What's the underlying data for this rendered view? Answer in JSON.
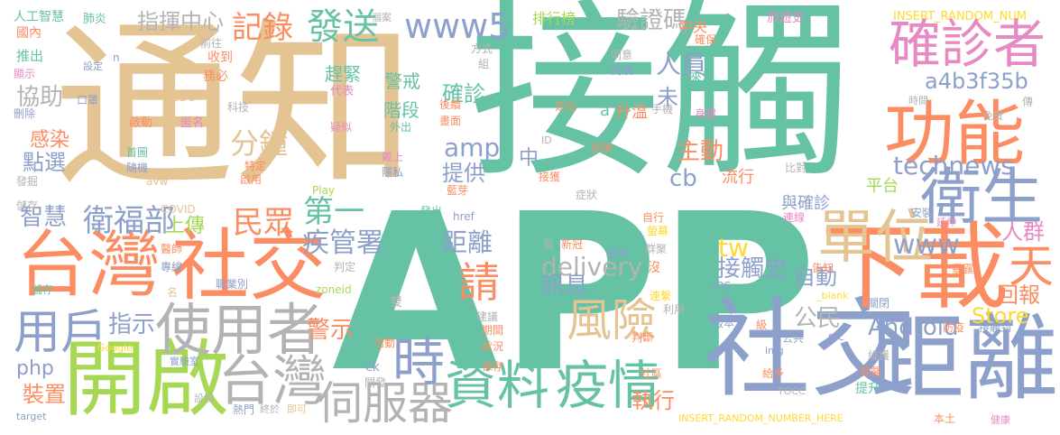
{
  "palette": {
    "green": "#66c2a5",
    "orange": "#fc8d62",
    "blue": "#8da0cb",
    "pink": "#e78ac3",
    "lime": "#a6d854",
    "yellow": "#ffd92f",
    "tan": "#e5c494",
    "gray": "#b3b3b3"
  },
  "words": [
    {
      "text": "接觸",
      "color": "#66c2a5"
    },
    {
      "text": "APP",
      "color": "#66c2a5"
    },
    {
      "text": "通知",
      "color": "#e5c494"
    },
    {
      "text": "台灣",
      "color": "#fc8d62"
    },
    {
      "text": "社交",
      "color": "#fc8d62"
    },
    {
      "text": "社交",
      "color": "#8da0cb"
    },
    {
      "text": "距離",
      "color": "#8da0cb"
    },
    {
      "text": "開啟",
      "color": "#a6d854"
    },
    {
      "text": "下載",
      "color": "#fc8d62"
    },
    {
      "text": "功能",
      "color": "#fc8d62"
    },
    {
      "text": "確診者",
      "color": "#e78ac3"
    },
    {
      "text": "衛生",
      "color": "#8da0cb"
    },
    {
      "text": "單位",
      "color": "#e5c494"
    },
    {
      "text": "使用者",
      "color": "#b3b3b3"
    },
    {
      "text": "用戶",
      "color": "#8da0cb"
    },
    {
      "text": "資料",
      "color": "#66c2a5"
    },
    {
      "text": "疫情",
      "color": "#66c2a5"
    },
    {
      "text": "台灣",
      "color": "#b3b3b3"
    },
    {
      "text": "伺服器",
      "color": "#b3b3b3"
    },
    {
      "text": "風險",
      "color": "#e5c494"
    },
    {
      "text": "時",
      "color": "#8da0cb"
    },
    {
      "text": "天",
      "color": "#fc8d62"
    },
    {
      "text": "請",
      "color": "#fc8d62"
    },
    {
      "text": "衛福部",
      "color": "#8da0cb"
    },
    {
      "text": "民眾",
      "color": "#fc8d62"
    },
    {
      "text": "分鐘",
      "color": "#e5c494"
    },
    {
      "text": "第一",
      "color": "#66c2a5"
    },
    {
      "text": "發送",
      "color": "#66c2a5"
    },
    {
      "text": "www5",
      "color": "#8da0cb"
    },
    {
      "text": "technews",
      "color": "#8da0cb"
    },
    {
      "text": "www",
      "color": "#8da0cb"
    },
    {
      "text": "delivery",
      "color": "#b3b3b3"
    },
    {
      "text": "Android",
      "color": "#8da0cb"
    },
    {
      "text": "a4b3f35b",
      "color": "#8da0cb"
    },
    {
      "text": "接觸史",
      "color": "#8da0cb"
    },
    {
      "text": "距離",
      "color": "#8da0cb"
    },
    {
      "text": "疾管署",
      "color": "#8da0cb"
    },
    {
      "text": "記錄",
      "color": "#fc8d62"
    },
    {
      "text": "指揮中心",
      "color": "#b3b3b3"
    },
    {
      "text": "驗證碼",
      "color": "#b3b3b3"
    },
    {
      "text": "協助",
      "color": "#b3b3b3"
    },
    {
      "text": "確診",
      "color": "#66c2a5"
    },
    {
      "text": "階段",
      "color": "#66c2a5"
    },
    {
      "text": "警戒",
      "color": "#66c2a5"
    },
    {
      "text": "趕緊",
      "color": "#66c2a5"
    },
    {
      "text": "人員",
      "color": "#8da0cb"
    },
    {
      "text": "主動",
      "color": "#fc8d62"
    },
    {
      "text": "提供",
      "color": "#8da0cb"
    },
    {
      "text": "amp",
      "color": "#8da0cb"
    },
    {
      "text": "cb",
      "color": "#8da0cb"
    },
    {
      "text": "tw",
      "color": "#ffd92f"
    },
    {
      "text": "訊息",
      "color": "#8da0cb"
    },
    {
      "text": "自動",
      "color": "#8da0cb"
    },
    {
      "text": "公民",
      "color": "#b3b3b3"
    },
    {
      "text": "回報",
      "color": "#fc8d62"
    },
    {
      "text": "人群",
      "color": "#e78ac3"
    },
    {
      "text": "警示",
      "color": "#fc8d62"
    },
    {
      "text": "指示",
      "color": "#8da0cb"
    },
    {
      "text": "上傳",
      "color": "#a6d854"
    },
    {
      "text": "智慧",
      "color": "#8da0cb"
    },
    {
      "text": "裝置",
      "color": "#fc8d62"
    },
    {
      "text": "php",
      "color": "#8da0cb"
    },
    {
      "text": "Store",
      "color": "#ffd92f"
    },
    {
      "text": "點選",
      "color": "#8da0cb"
    },
    {
      "text": "感染",
      "color": "#fc8d62"
    },
    {
      "text": "執行",
      "color": "#fc8d62"
    },
    {
      "text": "中",
      "color": "#8da0cb"
    },
    {
      "text": "未",
      "color": "#8da0cb"
    },
    {
      "text": "a",
      "color": "#66c2a5"
    },
    {
      "text": "升溫",
      "color": "#fc8d62"
    },
    {
      "text": "中央",
      "color": "#fc8d62"
    },
    {
      "text": "流行",
      "color": "#fc8d62"
    },
    {
      "text": "平台",
      "color": "#a6d854"
    },
    {
      "text": "與確診",
      "color": "#8da0cb"
    },
    {
      "text": "排行榜",
      "color": "#a6d854"
    },
    {
      "text": "旅遊史",
      "color": "#e78ac3"
    },
    {
      "text": "INSERT_RANDOM_NUM",
      "color": "#ffd92f"
    },
    {
      "text": "人工智慧",
      "color": "#66c2a5"
    },
    {
      "text": "國內",
      "color": "#fc8d62"
    },
    {
      "text": "推出",
      "color": "#66c2a5"
    },
    {
      "text": "顯示",
      "color": "#e78ac3"
    },
    {
      "text": "肺炎",
      "color": "#66c2a5"
    },
    {
      "text": "設定",
      "color": "#8da0cb"
    },
    {
      "text": "前往",
      "color": "#b3b3b3"
    },
    {
      "text": "收到",
      "color": "#fc8d62"
    },
    {
      "text": "務必",
      "color": "#fc8d62"
    },
    {
      "text": "代表",
      "color": "#e78ac3"
    },
    {
      "text": "口罩",
      "color": "#8da0cb"
    },
    {
      "text": "CDC",
      "color": "#e5c494"
    },
    {
      "text": "刪除",
      "color": "#8da0cb"
    },
    {
      "text": "啟動",
      "color": "#fc8d62"
    },
    {
      "text": "匿名",
      "color": "#e78ac3"
    },
    {
      "text": "科技",
      "color": "#b3b3b3"
    },
    {
      "text": "疑似",
      "color": "#e78ac3"
    },
    {
      "text": "外出",
      "color": "#66c2a5"
    },
    {
      "text": "後續",
      "color": "#fc8d62"
    },
    {
      "text": "畫面",
      "color": "#fc8d62"
    },
    {
      "text": "定位",
      "color": "#fc8d62"
    },
    {
      "text": "手機",
      "color": "#b3b3b3"
    },
    {
      "text": "身體",
      "color": "#e78ac3"
    },
    {
      "text": "確保",
      "color": "#fc8d62"
    },
    {
      "text": "來源",
      "color": "#66c2a5"
    },
    {
      "text": "同意",
      "color": "#b3b3b3"
    },
    {
      "text": "閱讀",
      "color": "#8da0cb"
    },
    {
      "text": "方式",
      "color": "#b3b3b3"
    },
    {
      "text": "組",
      "color": "#b3b3b3"
    },
    {
      "text": "個案",
      "color": "#b3b3b3"
    },
    {
      "text": "時間",
      "color": "#b3b3b3"
    },
    {
      "text": "免費",
      "color": "#b3b3b3"
    },
    {
      "text": "傳",
      "color": "#b3b3b3"
    },
    {
      "text": "首圖",
      "color": "#66c2a5"
    },
    {
      "text": "隨機",
      "color": "#8da0cb"
    },
    {
      "text": "avw",
      "color": "#e5c494"
    },
    {
      "text": "特定",
      "color": "#fc8d62"
    },
    {
      "text": "啟用",
      "color": "#fc8d62"
    },
    {
      "text": "戴上",
      "color": "#e78ac3"
    },
    {
      "text": "隱私",
      "color": "#8da0cb"
    },
    {
      "text": "ID",
      "color": "#b3b3b3"
    },
    {
      "text": "訊號",
      "color": "#fc8d62"
    },
    {
      "text": "接獲",
      "color": "#fc8d62"
    },
    {
      "text": "藍芽",
      "color": "#fc8d62"
    },
    {
      "text": "症狀",
      "color": "#b3b3b3"
    },
    {
      "text": "比對",
      "color": "#b3b3b3"
    },
    {
      "text": "COVID",
      "color": "#e5c494"
    },
    {
      "text": "Play",
      "color": "#a6d854"
    },
    {
      "text": "發掘",
      "color": "#b3b3b3"
    },
    {
      "text": "儲存",
      "color": "#b3b3b3"
    },
    {
      "text": "醫師",
      "color": "#fc8d62"
    },
    {
      "text": "專線",
      "color": "#8da0cb"
    },
    {
      "text": "儲存",
      "color": "#66c2a5"
    },
    {
      "text": "名",
      "color": "#e5c494"
    },
    {
      "text": "職業別",
      "color": "#8da0cb"
    },
    {
      "text": "判定",
      "color": "#b3b3b3"
    },
    {
      "text": "zoneid",
      "color": "#a6d854"
    },
    {
      "text": "發出",
      "color": "#66c2a5"
    },
    {
      "text": "href",
      "color": "#8da0cb"
    },
    {
      "text": "需",
      "color": "#b3b3b3"
    },
    {
      "text": "新冠",
      "color": "#fc8d62"
    },
    {
      "text": "臺灣",
      "color": "#8da0cb"
    },
    {
      "text": "群聚",
      "color": "#b3b3b3"
    },
    {
      "text": "沒",
      "color": "#fc8d62"
    },
    {
      "text": "螢幕",
      "color": "#ffd92f"
    },
    {
      "text": "自行",
      "color": "#fc8d62"
    },
    {
      "text": "安裝",
      "color": "#8da0cb"
    },
    {
      "text": "延伸",
      "color": "#e78ac3"
    },
    {
      "text": "連線",
      "color": "#e78ac3"
    },
    {
      "text": "告知",
      "color": "#fc8d62"
    },
    {
      "text": "_blank",
      "color": "#ffd92f"
    },
    {
      "text": "iOS",
      "color": "#8da0cb"
    },
    {
      "text": "暴露",
      "color": "#fc8d62"
    },
    {
      "text": "關閉",
      "color": "#8da0cb"
    },
    {
      "text": "雙",
      "color": "#b3b3b3"
    },
    {
      "text": "建議",
      "color": "#b3b3b3"
    },
    {
      "text": "期間",
      "color": "#fc8d62"
    },
    {
      "text": "狀況",
      "color": "#fc8d62"
    },
    {
      "text": "保存",
      "color": "#fc8d62"
    },
    {
      "text": "活動",
      "color": "#fc8d62"
    },
    {
      "text": "ck",
      "color": "#8da0cb"
    },
    {
      "text": "開發",
      "color": "#b3b3b3"
    },
    {
      "text": "利用",
      "color": "#b3b3b3"
    },
    {
      "text": "連繫",
      "color": "#ffd92f"
    },
    {
      "text": "版本",
      "color": "#8da0cb"
    },
    {
      "text": "級",
      "color": "#fc8d62"
    },
    {
      "text": "判斷",
      "color": "#fc8d62"
    },
    {
      "text": "img",
      "color": "#8da0cb"
    },
    {
      "text": "公共",
      "color": "#8da0cb"
    },
    {
      "text": "src",
      "color": "#8da0cb"
    },
    {
      "text": "防疫",
      "color": "#fc8d62"
    },
    {
      "text": "接觸到",
      "color": "#8da0cb"
    },
    {
      "text": "維護",
      "color": "#b3b3b3"
    },
    {
      "text": "就醫",
      "color": "#fc8d62"
    },
    {
      "text": "給予",
      "color": "#fc8d62"
    },
    {
      "text": "TOCC",
      "color": "#b3b3b3"
    },
    {
      "text": "提升",
      "color": "#66c2a5"
    },
    {
      "text": "社區",
      "color": "#fc8d62"
    },
    {
      "text": "Google",
      "color": "#ffd92f"
    },
    {
      "text": "實驗室",
      "color": "#8da0cb"
    },
    {
      "text": "設備",
      "color": "#b3b3b3"
    },
    {
      "text": "熱門",
      "color": "#8da0cb"
    },
    {
      "text": "終於",
      "color": "#b3b3b3"
    },
    {
      "text": "即可",
      "color": "#e5c494"
    },
    {
      "text": "target",
      "color": "#8da0cb"
    },
    {
      "text": "INSERT_RANDOM_NUMBER_HERE",
      "color": "#ffd92f"
    },
    {
      "text": "本土",
      "color": "#fc8d62"
    },
    {
      "text": "健康",
      "color": "#e78ac3"
    },
    {
      "text": "n",
      "color": "#8da0cb"
    }
  ]
}
